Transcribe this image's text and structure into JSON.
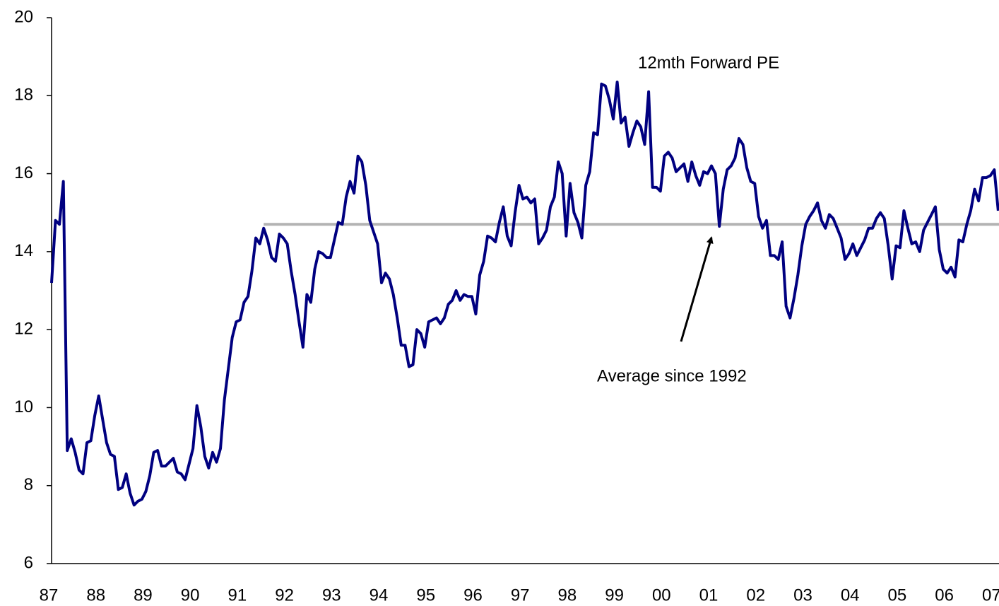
{
  "chart_data": {
    "type": "line",
    "x": [
      1987,
      1987.083,
      1987.167,
      1987.25,
      1987.333,
      1987.417,
      1987.5,
      1987.583,
      1987.667,
      1987.75,
      1987.833,
      1987.917,
      1988,
      1988.083,
      1988.167,
      1988.25,
      1988.333,
      1988.417,
      1988.5,
      1988.583,
      1988.667,
      1988.75,
      1988.833,
      1988.917,
      1989,
      1989.083,
      1989.167,
      1989.25,
      1989.333,
      1989.417,
      1989.5,
      1989.583,
      1989.667,
      1989.75,
      1989.833,
      1989.917,
      1990,
      1990.083,
      1990.167,
      1990.25,
      1990.333,
      1990.417,
      1990.5,
      1990.583,
      1990.667,
      1990.75,
      1990.833,
      1990.917,
      1991,
      1991.083,
      1991.167,
      1991.25,
      1991.333,
      1991.417,
      1991.5,
      1991.583,
      1991.667,
      1991.75,
      1991.833,
      1991.917,
      1992,
      1992.083,
      1992.167,
      1992.25,
      1992.333,
      1992.417,
      1992.5,
      1992.583,
      1992.667,
      1992.75,
      1992.833,
      1992.917,
      1993,
      1993.083,
      1993.167,
      1993.25,
      1993.333,
      1993.417,
      1993.5,
      1993.583,
      1993.667,
      1993.75,
      1993.833,
      1993.917,
      1994,
      1994.083,
      1994.167,
      1994.25,
      1994.333,
      1994.417,
      1994.5,
      1994.583,
      1994.667,
      1994.75,
      1994.833,
      1994.917,
      1995,
      1995.083,
      1995.167,
      1995.25,
      1995.333,
      1995.417,
      1995.5,
      1995.583,
      1995.667,
      1995.75,
      1995.833,
      1995.917,
      1996,
      1996.083,
      1996.167,
      1996.25,
      1996.333,
      1996.417,
      1996.5,
      1996.583,
      1996.667,
      1996.75,
      1996.833,
      1996.917,
      1997,
      1997.083,
      1997.167,
      1997.25,
      1997.333,
      1997.417,
      1997.5,
      1997.583,
      1997.667,
      1997.75,
      1997.833,
      1997.917,
      1998,
      1998.083,
      1998.167,
      1998.25,
      1998.333,
      1998.417,
      1998.5,
      1998.583,
      1998.667,
      1998.75,
      1998.833,
      1998.917,
      1999,
      1999.083,
      1999.167,
      1999.25,
      1999.333,
      1999.417,
      1999.5,
      1999.583,
      1999.667,
      1999.75,
      1999.833,
      1999.917,
      2000,
      2000.083,
      2000.167,
      2000.25,
      2000.333,
      2000.417,
      2000.5,
      2000.583,
      2000.667,
      2000.75,
      2000.833,
      2000.917,
      2001,
      2001.083,
      2001.167,
      2001.25,
      2001.333,
      2001.417,
      2001.5,
      2001.583,
      2001.667,
      2001.75,
      2001.833,
      2001.917,
      2002,
      2002.083,
      2002.167,
      2002.25,
      2002.333,
      2002.417,
      2002.5,
      2002.583,
      2002.667,
      2002.75,
      2002.833,
      2002.917,
      2003,
      2003.083,
      2003.167,
      2003.25,
      2003.333,
      2003.417,
      2003.5,
      2003.583,
      2003.667,
      2003.75,
      2003.833,
      2003.917,
      2004,
      2004.083,
      2004.167,
      2004.25,
      2004.333,
      2004.417,
      2004.5,
      2004.583,
      2004.667,
      2004.75,
      2004.833,
      2004.917,
      2005,
      2005.083,
      2005.167,
      2005.25,
      2005.333,
      2005.417,
      2005.5,
      2005.583,
      2005.667,
      2005.75,
      2005.833,
      2005.917,
      2006,
      2006.083,
      2006.167,
      2006.25,
      2006.333,
      2006.417,
      2006.5,
      2006.583,
      2006.667,
      2006.75,
      2006.833,
      2006.917,
      2007,
      2007.083
    ],
    "series": [
      {
        "name": "12mth Forward PE",
        "color": "#000080",
        "values": [
          13.2,
          14.8,
          14.7,
          15.8,
          8.9,
          9.2,
          8.85,
          8.4,
          8.3,
          9.1,
          9.15,
          9.8,
          10.3,
          9.7,
          9.1,
          8.8,
          8.75,
          7.9,
          7.95,
          8.3,
          7.8,
          7.5,
          7.6,
          7.65,
          7.85,
          8.25,
          8.85,
          8.9,
          8.5,
          8.5,
          8.6,
          8.7,
          8.35,
          8.3,
          8.15,
          8.55,
          8.95,
          10.05,
          9.5,
          8.75,
          8.45,
          8.85,
          8.6,
          8.95,
          10.2,
          11.0,
          11.8,
          12.2,
          12.25,
          12.7,
          12.85,
          13.5,
          14.35,
          14.2,
          14.6,
          14.3,
          13.85,
          13.75,
          14.45,
          14.35,
          14.2,
          13.5,
          12.9,
          12.2,
          11.55,
          12.9,
          12.7,
          13.55,
          14.0,
          13.95,
          13.85,
          13.85,
          14.3,
          14.75,
          14.7,
          15.4,
          15.8,
          15.5,
          16.45,
          16.3,
          15.7,
          14.8,
          14.5,
          14.2,
          13.2,
          13.45,
          13.3,
          12.9,
          12.3,
          11.6,
          11.6,
          11.05,
          11.1,
          12.0,
          11.9,
          11.55,
          12.2,
          12.25,
          12.3,
          12.15,
          12.3,
          12.65,
          12.75,
          13.0,
          12.75,
          12.9,
          12.85,
          12.85,
          12.4,
          13.4,
          13.75,
          14.4,
          14.35,
          14.25,
          14.75,
          15.15,
          14.4,
          14.15,
          15.0,
          15.7,
          15.35,
          15.4,
          15.25,
          15.35,
          14.2,
          14.35,
          14.55,
          15.15,
          15.4,
          16.3,
          16.0,
          14.4,
          15.75,
          15.0,
          14.75,
          14.35,
          15.7,
          16.05,
          17.05,
          17.0,
          18.3,
          18.25,
          17.9,
          17.4,
          18.35,
          17.3,
          17.45,
          16.7,
          17.05,
          17.35,
          17.2,
          16.75,
          18.1,
          15.65,
          15.65,
          15.55,
          16.45,
          16.55,
          16.4,
          16.05,
          16.15,
          16.25,
          15.8,
          16.3,
          15.95,
          15.7,
          16.05,
          16.0,
          16.2,
          16.0,
          14.65,
          15.6,
          16.1,
          16.2,
          16.4,
          16.9,
          16.75,
          16.15,
          15.8,
          15.75,
          14.9,
          14.6,
          14.8,
          13.9,
          13.9,
          13.8,
          14.25,
          12.6,
          12.3,
          12.8,
          13.4,
          14.15,
          14.7,
          14.9,
          15.05,
          15.25,
          14.8,
          14.6,
          14.95,
          14.85,
          14.6,
          14.35,
          13.8,
          13.95,
          14.2,
          13.9,
          14.1,
          14.3,
          14.6,
          14.6,
          14.85,
          15.0,
          14.85,
          14.15,
          13.3,
          14.15,
          14.1,
          15.05,
          14.6,
          14.2,
          14.25,
          14.0,
          14.55,
          14.75,
          14.95,
          15.15,
          14.05,
          13.55,
          13.45,
          13.6,
          13.35,
          14.3,
          14.25,
          14.7,
          15.05,
          15.6,
          15.3,
          15.9,
          15.9,
          15.95,
          16.1,
          15.05
        ]
      }
    ],
    "reference_line": {
      "label": "Average since 1992",
      "value": 14.7,
      "x_start": 1991.5,
      "color": "#b3b3b3"
    },
    "xlim": [
      1987,
      2007.1
    ],
    "xticks": [
      {
        "value": 1987,
        "label": "87"
      },
      {
        "value": 1988,
        "label": "88"
      },
      {
        "value": 1989,
        "label": "89"
      },
      {
        "value": 1990,
        "label": "90"
      },
      {
        "value": 1991,
        "label": "91"
      },
      {
        "value": 1992,
        "label": "92"
      },
      {
        "value": 1993,
        "label": "93"
      },
      {
        "value": 1994,
        "label": "94"
      },
      {
        "value": 1995,
        "label": "95"
      },
      {
        "value": 1996,
        "label": "96"
      },
      {
        "value": 1997,
        "label": "97"
      },
      {
        "value": 1998,
        "label": "98"
      },
      {
        "value": 1999,
        "label": "99"
      },
      {
        "value": 2000,
        "label": "00"
      },
      {
        "value": 2001,
        "label": "01"
      },
      {
        "value": 2002,
        "label": "02"
      },
      {
        "value": 2003,
        "label": "03"
      },
      {
        "value": 2004,
        "label": "04"
      },
      {
        "value": 2005,
        "label": "05"
      },
      {
        "value": 2006,
        "label": "06"
      },
      {
        "value": 2007,
        "label": "07"
      }
    ],
    "ylim": [
      6,
      20
    ],
    "yticks": [
      6,
      8,
      10,
      12,
      14,
      16,
      18,
      20
    ],
    "grid": false
  }
}
